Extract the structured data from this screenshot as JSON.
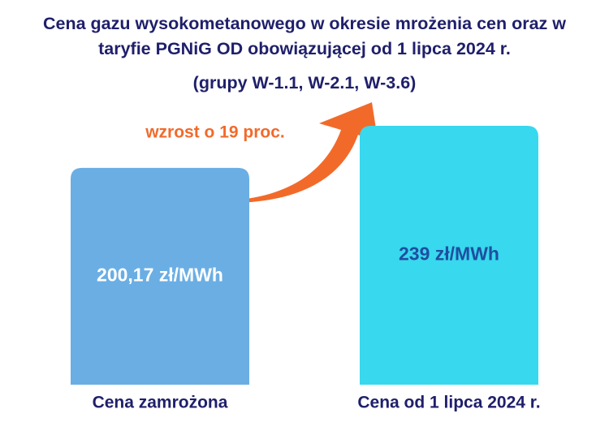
{
  "chart_data": {
    "type": "bar",
    "title": "Cena gazu wysokometanowego w okresie mrożenia cen oraz w taryfie PGNiG OD obowiązującej od 1 lipca 2024 r.",
    "subtitle": "(grupy W-1.1, W-2.1, W-3.6)",
    "annotation": "wzrost o 19 proc.",
    "categories": [
      "Cena zamrożona",
      "Cena od 1 lipca 2024 r."
    ],
    "values": [
      200.17,
      239
    ],
    "value_labels": [
      "200,17 zł/MWh",
      "239 zł/MWh"
    ],
    "colors": [
      "#6aaee4",
      "#38d8ee"
    ],
    "label_colors": [
      "#ffffff",
      "#1e4fa0"
    ]
  }
}
